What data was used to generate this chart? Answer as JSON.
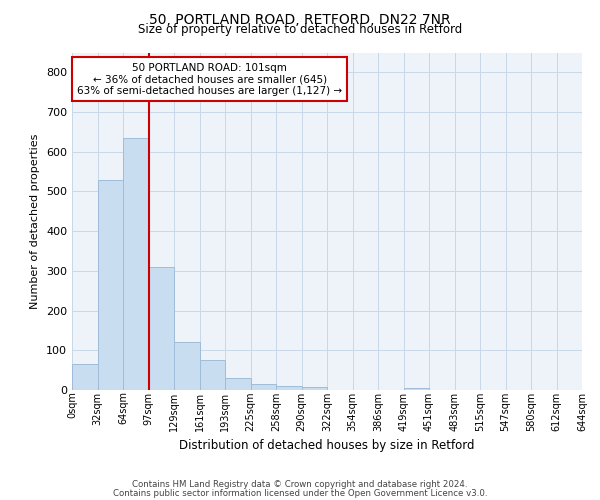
{
  "title1": "50, PORTLAND ROAD, RETFORD, DN22 7NR",
  "title2": "Size of property relative to detached houses in Retford",
  "xlabel": "Distribution of detached houses by size in Retford",
  "ylabel": "Number of detached properties",
  "footer1": "Contains HM Land Registry data © Crown copyright and database right 2024.",
  "footer2": "Contains public sector information licensed under the Open Government Licence v3.0.",
  "annotation_line1": "50 PORTLAND ROAD: 101sqm",
  "annotation_line2": "← 36% of detached houses are smaller (645)",
  "annotation_line3": "63% of semi-detached houses are larger (1,127) →",
  "bar_values": [
    65,
    530,
    635,
    310,
    120,
    75,
    30,
    15,
    10,
    8,
    0,
    0,
    0,
    5,
    0,
    0,
    0,
    0,
    0,
    0
  ],
  "bin_labels": [
    "0sqm",
    "32sqm",
    "64sqm",
    "97sqm",
    "129sqm",
    "161sqm",
    "193sqm",
    "225sqm",
    "258sqm",
    "290sqm",
    "322sqm",
    "354sqm",
    "386sqm",
    "419sqm",
    "451sqm",
    "483sqm",
    "515sqm",
    "547sqm",
    "580sqm",
    "612sqm",
    "644sqm"
  ],
  "bar_color": "#c9ddf0",
  "bar_edge_color": "#a0bcd8",
  "vline_x": 3,
  "vline_color": "#cc0000",
  "grid_color": "#c8d8e8",
  "bg_color": "#eef3fa",
  "annotation_box_edge": "#cc0000",
  "ylim": [
    0,
    850
  ],
  "yticks": [
    0,
    100,
    200,
    300,
    400,
    500,
    600,
    700,
    800
  ]
}
